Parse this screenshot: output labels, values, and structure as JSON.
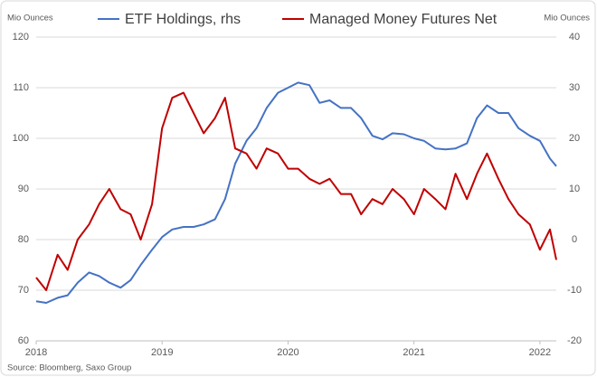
{
  "chart_data": {
    "type": "line",
    "y_label": "Mio Ounces",
    "y2_label": "Mio Ounces",
    "source": "Source: Bloomberg, Saxo Group",
    "x": [
      2018.0,
      2018.08,
      2018.17,
      2018.25,
      2018.33,
      2018.42,
      2018.5,
      2018.58,
      2018.67,
      2018.75,
      2018.83,
      2018.92,
      2019.0,
      2019.08,
      2019.17,
      2019.25,
      2019.33,
      2019.42,
      2019.5,
      2019.58,
      2019.67,
      2019.75,
      2019.83,
      2019.92,
      2020.0,
      2020.08,
      2020.17,
      2020.25,
      2020.33,
      2020.42,
      2020.5,
      2020.58,
      2020.67,
      2020.75,
      2020.83,
      2020.92,
      2021.0,
      2021.08,
      2021.17,
      2021.25,
      2021.33,
      2021.42,
      2021.5,
      2021.58,
      2021.67,
      2021.75,
      2021.83,
      2021.92,
      2022.0,
      2022.08,
      2022.13
    ],
    "series": [
      {
        "name": "ETF Holdings, rhs",
        "color": "#4472c4",
        "axis": "y",
        "values": [
          67.8,
          67.5,
          68.5,
          69,
          71.5,
          73.5,
          72.8,
          71.5,
          70.5,
          72,
          75,
          78,
          80.5,
          82,
          82.5,
          82.5,
          83,
          84,
          88,
          95,
          99.5,
          102,
          106,
          109,
          110,
          111,
          110.5,
          107,
          107.5,
          106,
          106,
          104,
          100.5,
          99.8,
          101,
          100.8,
          100,
          99.5,
          98,
          97.8,
          98,
          99,
          104,
          106.5,
          105,
          105,
          102,
          100.5,
          99.5,
          96,
          94.5
        ]
      },
      {
        "name": "Managed Money Futures Net",
        "color": "#c00000",
        "axis": "y2",
        "values": [
          -7.5,
          -10,
          -3,
          -6,
          0,
          3,
          7,
          10,
          6,
          5,
          0,
          7,
          22,
          28,
          29,
          25,
          21,
          24,
          28,
          18,
          17,
          14,
          18,
          17,
          14,
          14,
          12,
          11,
          12,
          9,
          9,
          5,
          8,
          7,
          10,
          8,
          5,
          10,
          8,
          6,
          13,
          8,
          13,
          17,
          12,
          8,
          5,
          3,
          -2,
          2,
          -4
        ]
      }
    ],
    "xlim": [
      2018,
      2022.13
    ],
    "xticks": [
      2018,
      2019,
      2020,
      2021,
      2022
    ],
    "ylim": [
      60,
      120
    ],
    "yticks": [
      60,
      70,
      80,
      90,
      100,
      110,
      120
    ],
    "y2lim": [
      -20,
      40
    ],
    "y2ticks": [
      -20,
      -10,
      0,
      10,
      20,
      30,
      40
    ],
    "grid": true,
    "legend": "top"
  }
}
